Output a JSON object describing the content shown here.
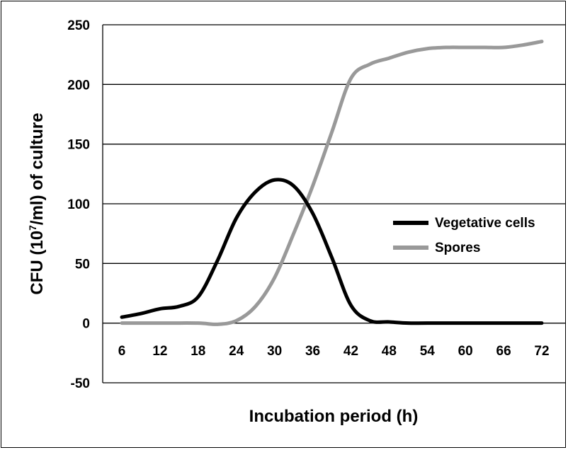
{
  "chart_data": {
    "type": "line",
    "xlabel": "Incubation period (h)",
    "ylabel_main": "CFU (10",
    "ylabel_sup": "7",
    "ylabel_tail": "/ml) of culture",
    "x_ticks": [
      "6",
      "12",
      "18",
      "24",
      "30",
      "36",
      "42",
      "48",
      "54",
      "60",
      "66",
      "72"
    ],
    "y_ticks": [
      "250",
      "200",
      "150",
      "100",
      "50",
      "0",
      "-50"
    ],
    "ylim": [
      -50,
      250
    ],
    "xlim": [
      6,
      72
    ],
    "grid": true,
    "legend_position": "right",
    "series": [
      {
        "name": "Vegetative cells",
        "color": "#000000",
        "points": [
          [
            6,
            5
          ],
          [
            9,
            8
          ],
          [
            12,
            12
          ],
          [
            15,
            14
          ],
          [
            18,
            22
          ],
          [
            21,
            52
          ],
          [
            24,
            88
          ],
          [
            27,
            110
          ],
          [
            30,
            120
          ],
          [
            33,
            115
          ],
          [
            36,
            92
          ],
          [
            39,
            55
          ],
          [
            42,
            15
          ],
          [
            45,
            2
          ],
          [
            48,
            1
          ],
          [
            51,
            0
          ],
          [
            54,
            0
          ],
          [
            60,
            0
          ],
          [
            66,
            0
          ],
          [
            72,
            0
          ]
        ]
      },
      {
        "name": "Spores",
        "color": "#999999",
        "points": [
          [
            6,
            0
          ],
          [
            12,
            0
          ],
          [
            18,
            0
          ],
          [
            21,
            -1
          ],
          [
            24,
            2
          ],
          [
            27,
            14
          ],
          [
            30,
            38
          ],
          [
            33,
            75
          ],
          [
            36,
            115
          ],
          [
            39,
            160
          ],
          [
            42,
            205
          ],
          [
            45,
            217
          ],
          [
            48,
            222
          ],
          [
            51,
            227
          ],
          [
            54,
            230
          ],
          [
            57,
            231
          ],
          [
            60,
            231
          ],
          [
            63,
            231
          ],
          [
            66,
            231
          ],
          [
            69,
            233
          ],
          [
            72,
            236
          ]
        ]
      }
    ]
  }
}
